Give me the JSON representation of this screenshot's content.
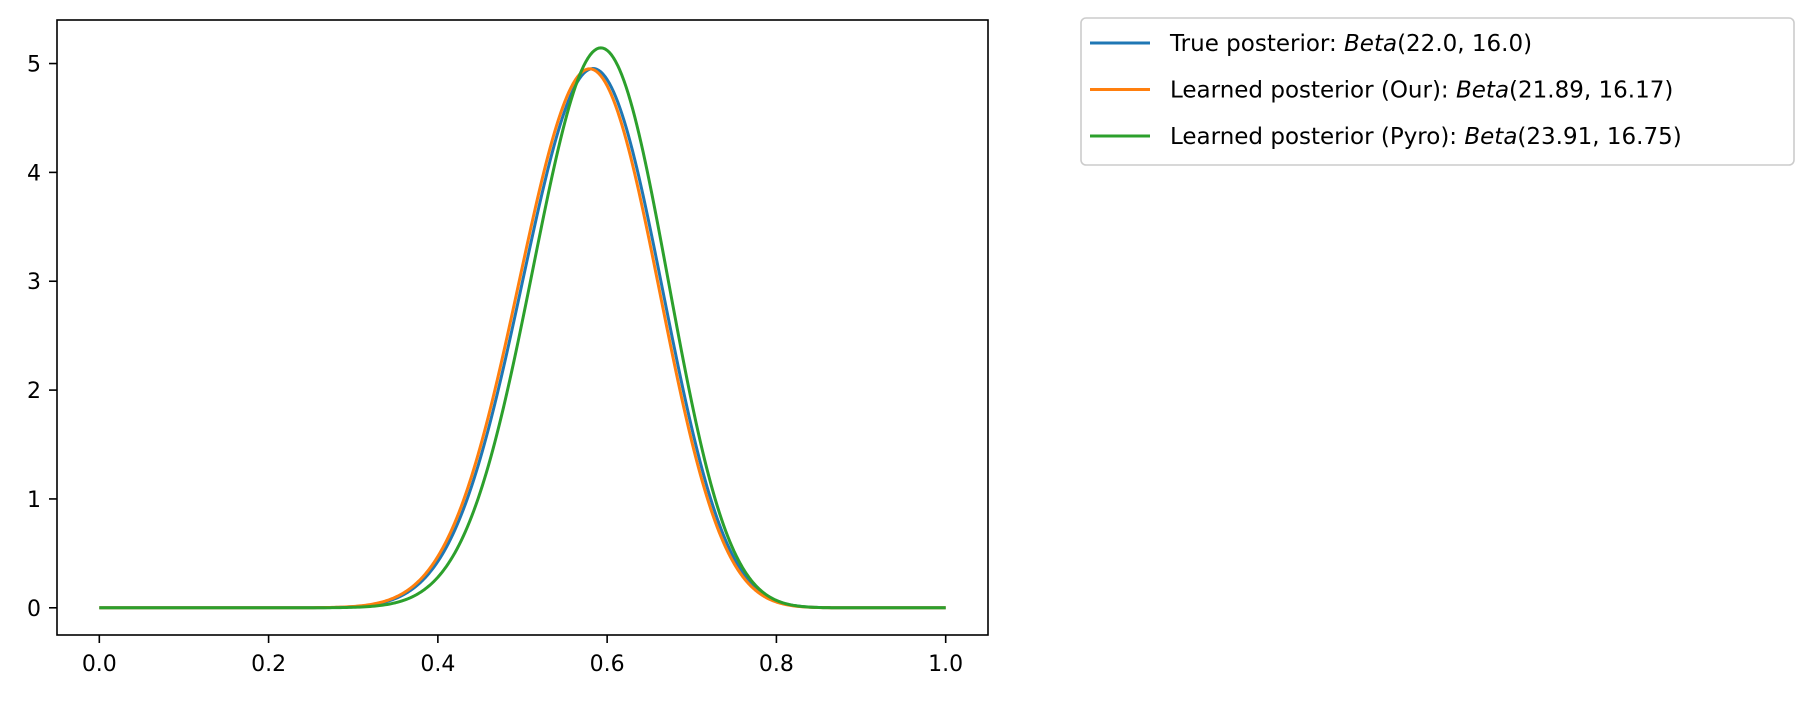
{
  "chart_data": {
    "type": "line",
    "title": "",
    "xlabel": "",
    "ylabel": "",
    "xlim": [
      -0.05,
      1.05
    ],
    "ylim": [
      -0.25,
      5.4
    ],
    "x_ticks": [
      "0.0",
      "0.2",
      "0.4",
      "0.6",
      "0.8",
      "1.0"
    ],
    "x_tick_values": [
      0.0,
      0.2,
      0.4,
      0.6,
      0.8,
      1.0
    ],
    "y_ticks": [
      "0",
      "1",
      "2",
      "3",
      "4",
      "5"
    ],
    "y_tick_values": [
      0,
      1,
      2,
      3,
      4,
      5
    ],
    "grid": false,
    "legend_position": "outside-upper-right",
    "x_range": [
      0,
      1
    ],
    "series": [
      {
        "name": "True posterior: Beta(22.0, 16.0)",
        "label_prefix": "True posterior: ",
        "label_formula": "Beta",
        "label_args": "(22.0, 16.0)",
        "distribution": "beta",
        "alpha": 22.0,
        "beta": 16.0,
        "color": "#1f77b4"
      },
      {
        "name": "Learned posterior (Our): Beta(21.89, 16.17)",
        "label_prefix": "Learned posterior (Our): ",
        "label_formula": "Beta",
        "label_args": "(21.89, 16.17)",
        "distribution": "beta",
        "alpha": 21.89,
        "beta": 16.17,
        "color": "#ff7f0e"
      },
      {
        "name": "Learned posterior (Pyro): Beta(23.91, 16.75)",
        "label_prefix": "Learned posterior (Pyro): ",
        "label_formula": "Beta",
        "label_args": "(23.91, 16.75)",
        "distribution": "beta",
        "alpha": 23.91,
        "beta": 16.75,
        "color": "#2ca02c"
      }
    ]
  }
}
